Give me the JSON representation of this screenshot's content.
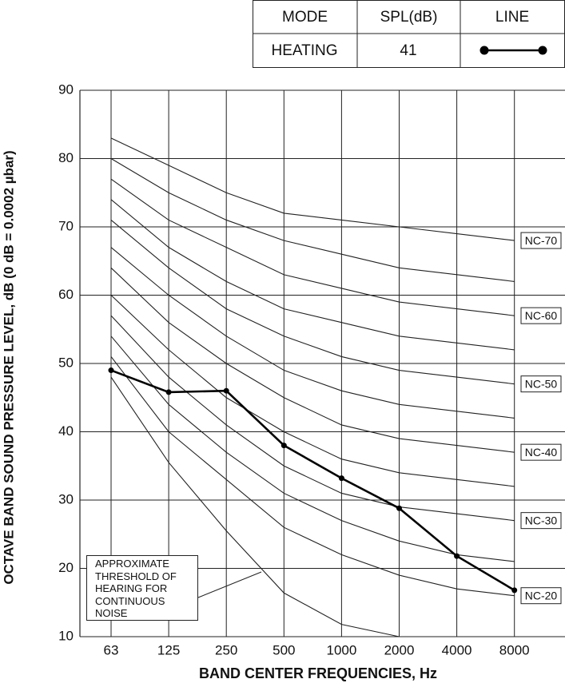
{
  "chart_data": {
    "type": "line",
    "x_label": "BAND CENTER FREQUENCIES, Hz",
    "y_label": "OCTAVE BAND SOUND PRESSURE LEVEL, dB (0 dB = 0.0002 µbar)",
    "categories": [
      "63",
      "125",
      "250",
      "500",
      "1000",
      "2000",
      "4000",
      "8000"
    ],
    "ylim": [
      10,
      90
    ],
    "yticks": [
      10,
      20,
      30,
      40,
      50,
      60,
      70,
      80,
      90
    ],
    "grid": true,
    "legend_headers": [
      "MODE",
      "SPL(dB)",
      "LINE"
    ],
    "annotation": "APPROXIMATE THRESHOLD OF HEARING FOR CONTINUOUS NOISE",
    "series": [
      {
        "name": "NC-70",
        "color": "#222222",
        "values": [
          83,
          79,
          75,
          72,
          71,
          70,
          69,
          68
        ]
      },
      {
        "color": "#222222",
        "values": [
          80,
          75,
          71,
          68,
          66,
          64,
          63,
          62
        ]
      },
      {
        "name": "NC-60",
        "color": "#222222",
        "values": [
          77,
          71,
          67,
          63,
          61,
          59,
          58,
          57
        ]
      },
      {
        "color": "#222222",
        "values": [
          74,
          67,
          62,
          58,
          56,
          54,
          53,
          52
        ]
      },
      {
        "name": "NC-50",
        "color": "#222222",
        "values": [
          71,
          64,
          58,
          54,
          51,
          49,
          48,
          47
        ]
      },
      {
        "color": "#222222",
        "values": [
          67,
          60,
          54,
          49,
          46,
          44,
          43,
          42
        ]
      },
      {
        "name": "NC-40",
        "color": "#222222",
        "values": [
          64,
          56,
          50,
          45,
          41,
          39,
          38,
          37
        ]
      },
      {
        "color": "#222222",
        "values": [
          60,
          52,
          45,
          40,
          36,
          34,
          33,
          32
        ]
      },
      {
        "name": "NC-30",
        "color": "#222222",
        "values": [
          57,
          48,
          41,
          35,
          31,
          29,
          28,
          27
        ]
      },
      {
        "color": "#222222",
        "values": [
          54,
          44,
          37,
          31,
          27,
          24,
          22,
          21
        ]
      },
      {
        "name": "NC-20",
        "color": "#222222",
        "values": [
          51,
          40,
          33,
          26,
          22,
          19,
          17,
          16
        ]
      },
      {
        "color": "#222222",
        "values": [
          48,
          35.5,
          25.5,
          16.4,
          11.8,
          10,
          null,
          null
        ]
      },
      {
        "name": "HEATING",
        "spl": 41,
        "color": "#000000",
        "marker": true,
        "values": [
          49,
          45.8,
          46,
          38,
          33.2,
          28.8,
          21.8,
          16.8
        ]
      }
    ]
  }
}
